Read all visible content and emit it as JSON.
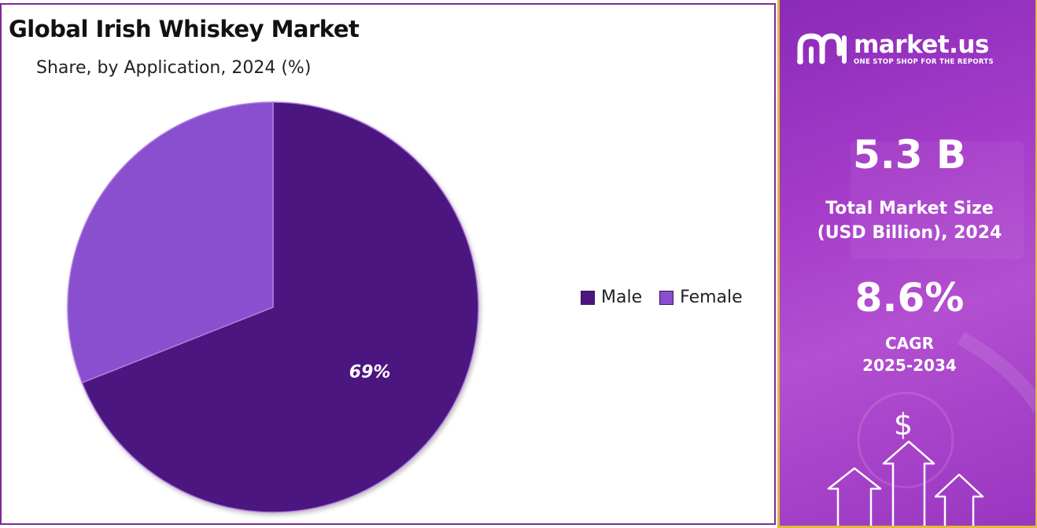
{
  "chart_data": {
    "type": "pie",
    "title": "Global Irish Whiskey Market",
    "subtitle": "Share, by Application, 2024 (%)",
    "categories": [
      "Male",
      "Female"
    ],
    "values": [
      69,
      31
    ],
    "data_labels": [
      "69%",
      ""
    ],
    "colors": [
      "#4b1580",
      "#8a4fcf"
    ],
    "legend_position": "right"
  },
  "info_panel": {
    "brand_name": "market.us",
    "brand_tagline": "ONE STOP SHOP FOR THE REPORTS",
    "market_size_value": "5.3 B",
    "market_size_label_line1": "Total Market Size",
    "market_size_label_line2": "(USD Billion), 2024",
    "cagr_value": "8.6%",
    "cagr_label_line1": "CAGR",
    "cagr_label_line2": "2025-2034",
    "currency_symbol": "$"
  }
}
